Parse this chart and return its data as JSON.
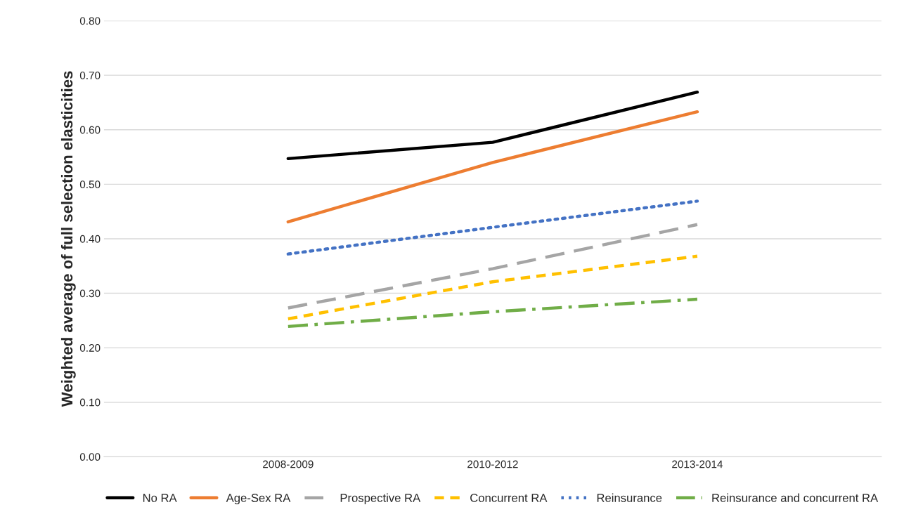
{
  "chart_data": {
    "type": "line",
    "ylabel": "Weighted average of full selection elasticities",
    "categories": [
      "2008-2009",
      "2010-2012",
      "2013-2014"
    ],
    "series": [
      {
        "name": "No RA",
        "color": "#000000",
        "values": [
          0.547,
          0.577,
          0.669
        ],
        "line_style": "solid"
      },
      {
        "name": "Age-Sex RA",
        "color": "#ed7d31",
        "values": [
          0.431,
          0.54,
          0.633
        ],
        "line_style": "solid"
      },
      {
        "name": "Prospective RA",
        "color": "#a5a5a5",
        "values": [
          0.273,
          0.345,
          0.426
        ],
        "line_style": "longdash"
      },
      {
        "name": "Concurrent RA",
        "color": "#ffc000",
        "values": [
          0.253,
          0.321,
          0.368
        ],
        "line_style": "dashed"
      },
      {
        "name": "Reinsurance",
        "color": "#4472c4",
        "values": [
          0.372,
          0.421,
          0.469
        ],
        "line_style": "dotted"
      },
      {
        "name": "Reinsurance and concurrent RA",
        "color": "#70ad47",
        "values": [
          0.239,
          0.266,
          0.289
        ],
        "line_style": "dashdot"
      }
    ],
    "ylim": [
      0,
      0.8
    ],
    "yticks": [
      {
        "value": 0,
        "label": "0.00"
      },
      {
        "value": 0.1,
        "label": "0.10"
      },
      {
        "value": 0.2,
        "label": "0.20"
      },
      {
        "value": 0.3,
        "label": "0.30"
      },
      {
        "value": 0.4,
        "label": "0.40"
      },
      {
        "value": 0.5,
        "label": "0.50"
      },
      {
        "value": 0.6,
        "label": "0.60"
      },
      {
        "value": 0.7,
        "label": "0.70"
      },
      {
        "value": 0.8,
        "label": "0.80"
      }
    ],
    "grid": "y",
    "legend": "bottom",
    "marker": "none"
  }
}
